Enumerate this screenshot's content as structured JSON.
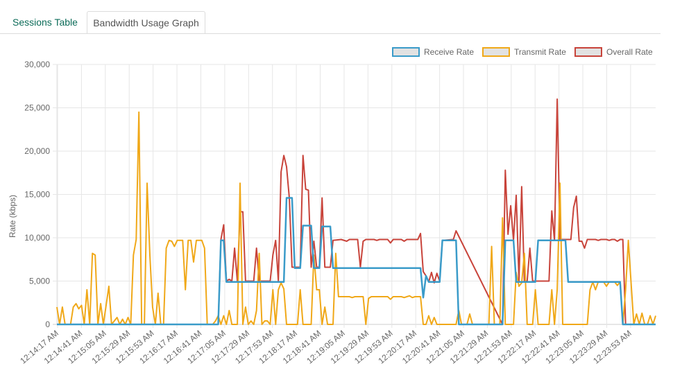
{
  "tabs": [
    {
      "label": "Sessions Table",
      "active": false
    },
    {
      "label": "Bandwidth Usage Graph",
      "active": true
    }
  ],
  "chart_data": {
    "type": "line",
    "title": "",
    "xlabel": "",
    "ylabel": "Rate (kbps)",
    "ylim": [
      0,
      30000
    ],
    "yticks": [
      0,
      5000,
      10000,
      15000,
      20000,
      25000,
      30000
    ],
    "ytick_labels": [
      "0",
      "5,000",
      "10,000",
      "15,000",
      "20,000",
      "25,000",
      "30,000"
    ],
    "grid": true,
    "legend": "top-right",
    "n_points": 220,
    "x_tick_labels": [
      "12:14:17 AM",
      "12:14:41 AM",
      "12:15:05 AM",
      "12:15:29 AM",
      "12:15:53 AM",
      "12:16:17 AM",
      "12:16:41 AM",
      "12:17:05 AM",
      "12:17:29 AM",
      "12:17:53 AM",
      "12:18:17 AM",
      "12:18:41 AM",
      "12:19:05 AM",
      "12:19:29 AM",
      "12:19:53 AM",
      "12:20:17 AM",
      "12:20:41 AM",
      "12:21:05 AM",
      "12:21:29 AM",
      "12:21:53 AM",
      "12:22:17 AM",
      "12:22:41 AM",
      "12:23:05 AM",
      "12:23:29 AM",
      "12:23:53 AM"
    ],
    "series": [
      {
        "name": "Receive Rate",
        "color": "#3a9bc9",
        "segments": [
          [
            0,
            0
          ],
          [
            59,
            0
          ],
          [
            60,
            9700
          ],
          [
            61,
            9700
          ],
          [
            62,
            4900
          ],
          [
            83,
            4900
          ],
          [
            84,
            14600
          ],
          [
            86,
            14600
          ],
          [
            87,
            6500
          ],
          [
            89,
            6500
          ],
          [
            90,
            11400
          ],
          [
            93,
            11400
          ],
          [
            94,
            6500
          ],
          [
            96,
            6500
          ],
          [
            97,
            11300
          ],
          [
            100,
            11300
          ],
          [
            101,
            6500
          ],
          [
            133,
            6500
          ],
          [
            134,
            3100
          ],
          [
            135,
            5600
          ],
          [
            136,
            4900
          ],
          [
            140,
            4900
          ],
          [
            141,
            9700
          ],
          [
            146,
            9700
          ],
          [
            147,
            0
          ],
          [
            163,
            0
          ],
          [
            164,
            9700
          ],
          [
            167,
            9700
          ],
          [
            168,
            4900
          ],
          [
            175,
            4900
          ],
          [
            176,
            9700
          ],
          [
            186,
            9700
          ],
          [
            187,
            4900
          ],
          [
            206,
            4900
          ],
          [
            207,
            0
          ],
          [
            219,
            0
          ]
        ]
      },
      {
        "name": "Transmit Rate",
        "color": "#f0a818",
        "points": [
          [
            0,
            2000
          ],
          [
            1,
            0
          ],
          [
            2,
            2000
          ],
          [
            3,
            0
          ],
          [
            5,
            0
          ],
          [
            6,
            2000
          ],
          [
            7,
            2400
          ],
          [
            8,
            1800
          ],
          [
            9,
            2200
          ],
          [
            10,
            0
          ],
          [
            11,
            4000
          ],
          [
            12,
            0
          ],
          [
            13,
            8200
          ],
          [
            14,
            8000
          ],
          [
            15,
            0
          ],
          [
            16,
            2400
          ],
          [
            17,
            0
          ],
          [
            19,
            4400
          ],
          [
            20,
            0
          ],
          [
            22,
            800
          ],
          [
            23,
            0
          ],
          [
            24,
            600
          ],
          [
            25,
            0
          ],
          [
            26,
            800
          ],
          [
            27,
            0
          ],
          [
            28,
            8000
          ],
          [
            29,
            9800
          ],
          [
            30,
            24500
          ],
          [
            31,
            0
          ],
          [
            32,
            0
          ],
          [
            33,
            16300
          ],
          [
            34,
            8000
          ],
          [
            35,
            2000
          ],
          [
            36,
            0
          ],
          [
            37,
            3600
          ],
          [
            38,
            0
          ],
          [
            39,
            0
          ],
          [
            40,
            8800
          ],
          [
            41,
            9700
          ],
          [
            42,
            9600
          ],
          [
            43,
            9000
          ],
          [
            44,
            9700
          ],
          [
            45,
            9700
          ],
          [
            46,
            9700
          ],
          [
            47,
            4000
          ],
          [
            48,
            9700
          ],
          [
            49,
            9700
          ],
          [
            50,
            7200
          ],
          [
            51,
            9700
          ],
          [
            52,
            9700
          ],
          [
            53,
            9700
          ],
          [
            54,
            8800
          ],
          [
            55,
            0
          ],
          [
            57,
            0
          ],
          [
            58,
            400
          ],
          [
            59,
            1000
          ],
          [
            60,
            0
          ],
          [
            61,
            1000
          ],
          [
            62,
            0
          ],
          [
            63,
            1600
          ],
          [
            64,
            0
          ],
          [
            66,
            0
          ],
          [
            67,
            16300
          ],
          [
            68,
            0
          ],
          [
            69,
            2000
          ],
          [
            70,
            0
          ],
          [
            71,
            400
          ],
          [
            72,
            0
          ],
          [
            73,
            1600
          ],
          [
            74,
            8200
          ],
          [
            75,
            0
          ],
          [
            76,
            400
          ],
          [
            77,
            400
          ],
          [
            78,
            0
          ],
          [
            79,
            4000
          ],
          [
            80,
            0
          ],
          [
            81,
            4000
          ],
          [
            82,
            4800
          ],
          [
            83,
            4100
          ],
          [
            84,
            0
          ],
          [
            88,
            0
          ],
          [
            89,
            4000
          ],
          [
            90,
            0
          ],
          [
            93,
            0
          ],
          [
            94,
            8000
          ],
          [
            95,
            4000
          ],
          [
            96,
            4000
          ],
          [
            97,
            0
          ],
          [
            98,
            2000
          ],
          [
            99,
            0
          ],
          [
            101,
            0
          ],
          [
            102,
            8200
          ],
          [
            103,
            3200
          ],
          [
            104,
            3200
          ],
          [
            107,
            3200
          ],
          [
            108,
            3100
          ],
          [
            109,
            3200
          ],
          [
            112,
            3200
          ],
          [
            113,
            0
          ],
          [
            114,
            3000
          ],
          [
            115,
            3200
          ],
          [
            121,
            3200
          ],
          [
            122,
            2900
          ],
          [
            123,
            3200
          ],
          [
            126,
            3200
          ],
          [
            127,
            3100
          ],
          [
            128,
            3200
          ],
          [
            129,
            3300
          ],
          [
            130,
            3100
          ],
          [
            131,
            3200
          ],
          [
            133,
            3200
          ],
          [
            134,
            0
          ],
          [
            135,
            0
          ],
          [
            136,
            1000
          ],
          [
            137,
            0
          ],
          [
            138,
            800
          ],
          [
            139,
            0
          ],
          [
            140,
            0
          ],
          [
            141,
            0
          ],
          [
            146,
            0
          ],
          [
            147,
            1600
          ],
          [
            148,
            0
          ],
          [
            150,
            0
          ],
          [
            151,
            1200
          ],
          [
            152,
            0
          ],
          [
            158,
            0
          ],
          [
            159,
            9000
          ],
          [
            160,
            0
          ],
          [
            162,
            0
          ],
          [
            163,
            12300
          ],
          [
            164,
            0
          ],
          [
            166,
            0
          ],
          [
            167,
            0
          ],
          [
            168,
            6000
          ],
          [
            169,
            4400
          ],
          [
            170,
            4800
          ],
          [
            171,
            8200
          ],
          [
            172,
            0
          ],
          [
            174,
            0
          ],
          [
            175,
            4000
          ],
          [
            176,
            0
          ],
          [
            180,
            0
          ],
          [
            181,
            4000
          ],
          [
            182,
            0
          ],
          [
            183,
            4000
          ],
          [
            184,
            16300
          ],
          [
            185,
            0
          ],
          [
            194,
            0
          ],
          [
            195,
            4000
          ],
          [
            196,
            4900
          ],
          [
            197,
            4000
          ],
          [
            198,
            4900
          ],
          [
            200,
            4900
          ],
          [
            201,
            4400
          ],
          [
            202,
            4900
          ],
          [
            204,
            4900
          ],
          [
            205,
            4500
          ],
          [
            206,
            4900
          ],
          [
            207,
            0
          ],
          [
            208,
            4000
          ],
          [
            209,
            9700
          ],
          [
            210,
            4900
          ],
          [
            211,
            0
          ],
          [
            212,
            1200
          ],
          [
            213,
            0
          ],
          [
            214,
            1300
          ],
          [
            215,
            0
          ],
          [
            216,
            0
          ],
          [
            217,
            1000
          ],
          [
            218,
            0
          ],
          [
            219,
            1000
          ]
        ]
      },
      {
        "name": "Overall Rate",
        "color": "#c8433a",
        "points": [
          [
            59,
            0
          ],
          [
            60,
            9800
          ],
          [
            61,
            11500
          ],
          [
            62,
            5000
          ],
          [
            63,
            5200
          ],
          [
            64,
            5000
          ],
          [
            65,
            8800
          ],
          [
            66,
            5000
          ],
          [
            67,
            13000
          ],
          [
            68,
            13000
          ],
          [
            69,
            5000
          ],
          [
            72,
            5000
          ],
          [
            73,
            8800
          ],
          [
            74,
            5000
          ],
          [
            78,
            5000
          ],
          [
            79,
            8000
          ],
          [
            80,
            9700
          ],
          [
            81,
            5000
          ],
          [
            82,
            17600
          ],
          [
            83,
            19500
          ],
          [
            84,
            18200
          ],
          [
            85,
            14600
          ],
          [
            86,
            6600
          ],
          [
            89,
            6600
          ],
          [
            90,
            19500
          ],
          [
            91,
            15600
          ],
          [
            92,
            15500
          ],
          [
            93,
            6600
          ],
          [
            94,
            9600
          ],
          [
            95,
            6600
          ],
          [
            96,
            6600
          ],
          [
            97,
            14600
          ],
          [
            98,
            6600
          ],
          [
            100,
            6600
          ],
          [
            101,
            9700
          ],
          [
            104,
            9800
          ],
          [
            106,
            9600
          ],
          [
            107,
            9800
          ],
          [
            110,
            9800
          ],
          [
            111,
            6600
          ],
          [
            112,
            9600
          ],
          [
            113,
            9800
          ],
          [
            116,
            9800
          ],
          [
            117,
            9700
          ],
          [
            118,
            9800
          ],
          [
            121,
            9800
          ],
          [
            122,
            9400
          ],
          [
            123,
            9800
          ],
          [
            126,
            9800
          ],
          [
            127,
            9600
          ],
          [
            128,
            9800
          ],
          [
            131,
            9800
          ],
          [
            132,
            9800
          ],
          [
            133,
            10500
          ],
          [
            134,
            6100
          ],
          [
            135,
            5600
          ],
          [
            136,
            4900
          ],
          [
            137,
            6000
          ],
          [
            138,
            4800
          ],
          [
            139,
            5900
          ],
          [
            140,
            5000
          ],
          [
            141,
            9700
          ],
          [
            145,
            9800
          ],
          [
            146,
            10800
          ],
          [
            163,
            0
          ],
          [
            164,
            17800
          ],
          [
            165,
            10400
          ],
          [
            166,
            13700
          ],
          [
            167,
            9700
          ],
          [
            168,
            14900
          ],
          [
            169,
            5000
          ],
          [
            170,
            15900
          ],
          [
            171,
            4900
          ],
          [
            172,
            5000
          ],
          [
            173,
            8800
          ],
          [
            174,
            5000
          ],
          [
            180,
            5000
          ],
          [
            181,
            13100
          ],
          [
            182,
            9700
          ],
          [
            183,
            26000
          ],
          [
            184,
            9800
          ],
          [
            188,
            9800
          ],
          [
            189,
            13500
          ],
          [
            190,
            14800
          ],
          [
            191,
            9600
          ],
          [
            192,
            9600
          ],
          [
            193,
            8800
          ],
          [
            194,
            9800
          ],
          [
            197,
            9800
          ],
          [
            198,
            9700
          ],
          [
            199,
            9800
          ],
          [
            201,
            9800
          ],
          [
            202,
            9700
          ],
          [
            203,
            9800
          ],
          [
            204,
            9800
          ],
          [
            205,
            9600
          ],
          [
            206,
            9800
          ],
          [
            207,
            9800
          ],
          [
            208,
            0
          ]
        ]
      }
    ]
  }
}
